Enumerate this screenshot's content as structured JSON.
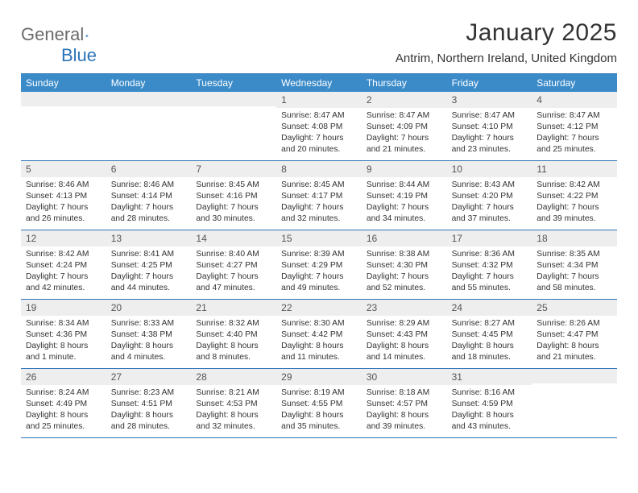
{
  "brand": {
    "part1": "General",
    "part2": "Blue"
  },
  "title": {
    "month": "January 2025",
    "location": "Antrim, Northern Ireland, United Kingdom"
  },
  "colors": {
    "header_bg": "#3b8bc9",
    "header_border": "#2b74b8",
    "daynum_bg": "#eeeeee",
    "text": "#333333",
    "logo_gray": "#6b6b6b",
    "logo_blue": "#2b74b8",
    "page_bg": "#ffffff"
  },
  "dayHeaders": [
    "Sunday",
    "Monday",
    "Tuesday",
    "Wednesday",
    "Thursday",
    "Friday",
    "Saturday"
  ],
  "weeks": [
    [
      {
        "n": "",
        "sr": "",
        "ss": "",
        "dl": ""
      },
      {
        "n": "",
        "sr": "",
        "ss": "",
        "dl": ""
      },
      {
        "n": "",
        "sr": "",
        "ss": "",
        "dl": ""
      },
      {
        "n": "1",
        "sr": "8:47 AM",
        "ss": "4:08 PM",
        "dl": "7 hours and 20 minutes."
      },
      {
        "n": "2",
        "sr": "8:47 AM",
        "ss": "4:09 PM",
        "dl": "7 hours and 21 minutes."
      },
      {
        "n": "3",
        "sr": "8:47 AM",
        "ss": "4:10 PM",
        "dl": "7 hours and 23 minutes."
      },
      {
        "n": "4",
        "sr": "8:47 AM",
        "ss": "4:12 PM",
        "dl": "7 hours and 25 minutes."
      }
    ],
    [
      {
        "n": "5",
        "sr": "8:46 AM",
        "ss": "4:13 PM",
        "dl": "7 hours and 26 minutes."
      },
      {
        "n": "6",
        "sr": "8:46 AM",
        "ss": "4:14 PM",
        "dl": "7 hours and 28 minutes."
      },
      {
        "n": "7",
        "sr": "8:45 AM",
        "ss": "4:16 PM",
        "dl": "7 hours and 30 minutes."
      },
      {
        "n": "8",
        "sr": "8:45 AM",
        "ss": "4:17 PM",
        "dl": "7 hours and 32 minutes."
      },
      {
        "n": "9",
        "sr": "8:44 AM",
        "ss": "4:19 PM",
        "dl": "7 hours and 34 minutes."
      },
      {
        "n": "10",
        "sr": "8:43 AM",
        "ss": "4:20 PM",
        "dl": "7 hours and 37 minutes."
      },
      {
        "n": "11",
        "sr": "8:42 AM",
        "ss": "4:22 PM",
        "dl": "7 hours and 39 minutes."
      }
    ],
    [
      {
        "n": "12",
        "sr": "8:42 AM",
        "ss": "4:24 PM",
        "dl": "7 hours and 42 minutes."
      },
      {
        "n": "13",
        "sr": "8:41 AM",
        "ss": "4:25 PM",
        "dl": "7 hours and 44 minutes."
      },
      {
        "n": "14",
        "sr": "8:40 AM",
        "ss": "4:27 PM",
        "dl": "7 hours and 47 minutes."
      },
      {
        "n": "15",
        "sr": "8:39 AM",
        "ss": "4:29 PM",
        "dl": "7 hours and 49 minutes."
      },
      {
        "n": "16",
        "sr": "8:38 AM",
        "ss": "4:30 PM",
        "dl": "7 hours and 52 minutes."
      },
      {
        "n": "17",
        "sr": "8:36 AM",
        "ss": "4:32 PM",
        "dl": "7 hours and 55 minutes."
      },
      {
        "n": "18",
        "sr": "8:35 AM",
        "ss": "4:34 PM",
        "dl": "7 hours and 58 minutes."
      }
    ],
    [
      {
        "n": "19",
        "sr": "8:34 AM",
        "ss": "4:36 PM",
        "dl": "8 hours and 1 minute."
      },
      {
        "n": "20",
        "sr": "8:33 AM",
        "ss": "4:38 PM",
        "dl": "8 hours and 4 minutes."
      },
      {
        "n": "21",
        "sr": "8:32 AM",
        "ss": "4:40 PM",
        "dl": "8 hours and 8 minutes."
      },
      {
        "n": "22",
        "sr": "8:30 AM",
        "ss": "4:42 PM",
        "dl": "8 hours and 11 minutes."
      },
      {
        "n": "23",
        "sr": "8:29 AM",
        "ss": "4:43 PM",
        "dl": "8 hours and 14 minutes."
      },
      {
        "n": "24",
        "sr": "8:27 AM",
        "ss": "4:45 PM",
        "dl": "8 hours and 18 minutes."
      },
      {
        "n": "25",
        "sr": "8:26 AM",
        "ss": "4:47 PM",
        "dl": "8 hours and 21 minutes."
      }
    ],
    [
      {
        "n": "26",
        "sr": "8:24 AM",
        "ss": "4:49 PM",
        "dl": "8 hours and 25 minutes."
      },
      {
        "n": "27",
        "sr": "8:23 AM",
        "ss": "4:51 PM",
        "dl": "8 hours and 28 minutes."
      },
      {
        "n": "28",
        "sr": "8:21 AM",
        "ss": "4:53 PM",
        "dl": "8 hours and 32 minutes."
      },
      {
        "n": "29",
        "sr": "8:19 AM",
        "ss": "4:55 PM",
        "dl": "8 hours and 35 minutes."
      },
      {
        "n": "30",
        "sr": "8:18 AM",
        "ss": "4:57 PM",
        "dl": "8 hours and 39 minutes."
      },
      {
        "n": "31",
        "sr": "8:16 AM",
        "ss": "4:59 PM",
        "dl": "8 hours and 43 minutes."
      },
      {
        "n": "",
        "sr": "",
        "ss": "",
        "dl": ""
      }
    ]
  ],
  "labels": {
    "sunrise": "Sunrise:",
    "sunset": "Sunset:",
    "daylight": "Daylight:"
  }
}
